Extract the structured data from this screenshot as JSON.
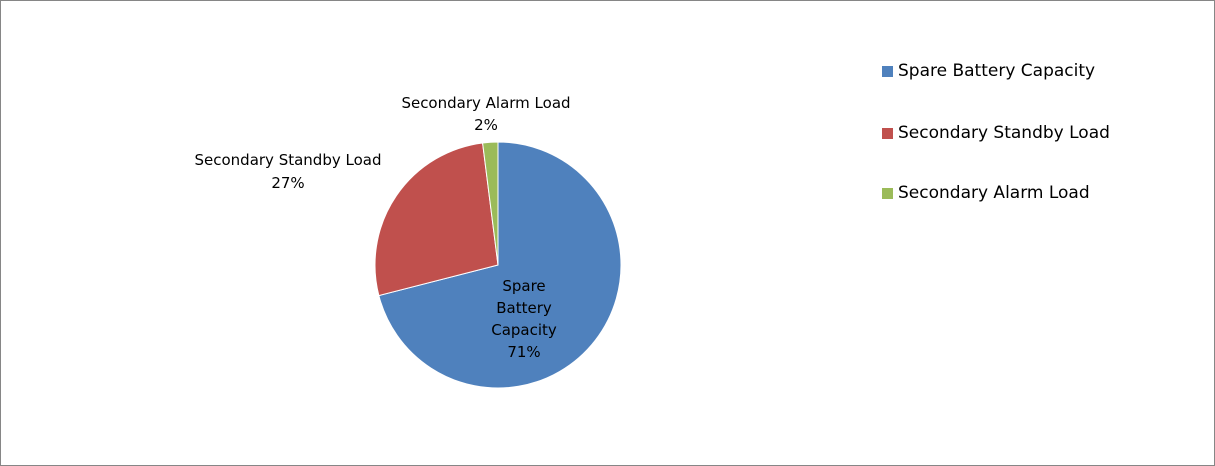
{
  "chart_data": {
    "type": "pie",
    "title": "",
    "slices": [
      {
        "label": "Spare Battery Capacity",
        "value": 71,
        "value_label": "71%",
        "color": "#4F81BD",
        "label_lines": [
          "Spare",
          "Battery",
          "Capacity"
        ]
      },
      {
        "label": "Secondary Standby Load",
        "value": 27,
        "value_label": "27%",
        "color": "#C0504D",
        "label_lines": [
          "Secondary Standby Load"
        ]
      },
      {
        "label": "Secondary Alarm  Load",
        "value": 2,
        "value_label": "2%",
        "color": "#9BBB59",
        "label_lines": [
          "Secondary Alarm  Load"
        ]
      }
    ],
    "legend": {
      "placement": "right",
      "entries": [
        "Spare Battery Capacity",
        "Secondary Standby Load",
        "Secondary Alarm  Load"
      ]
    }
  }
}
